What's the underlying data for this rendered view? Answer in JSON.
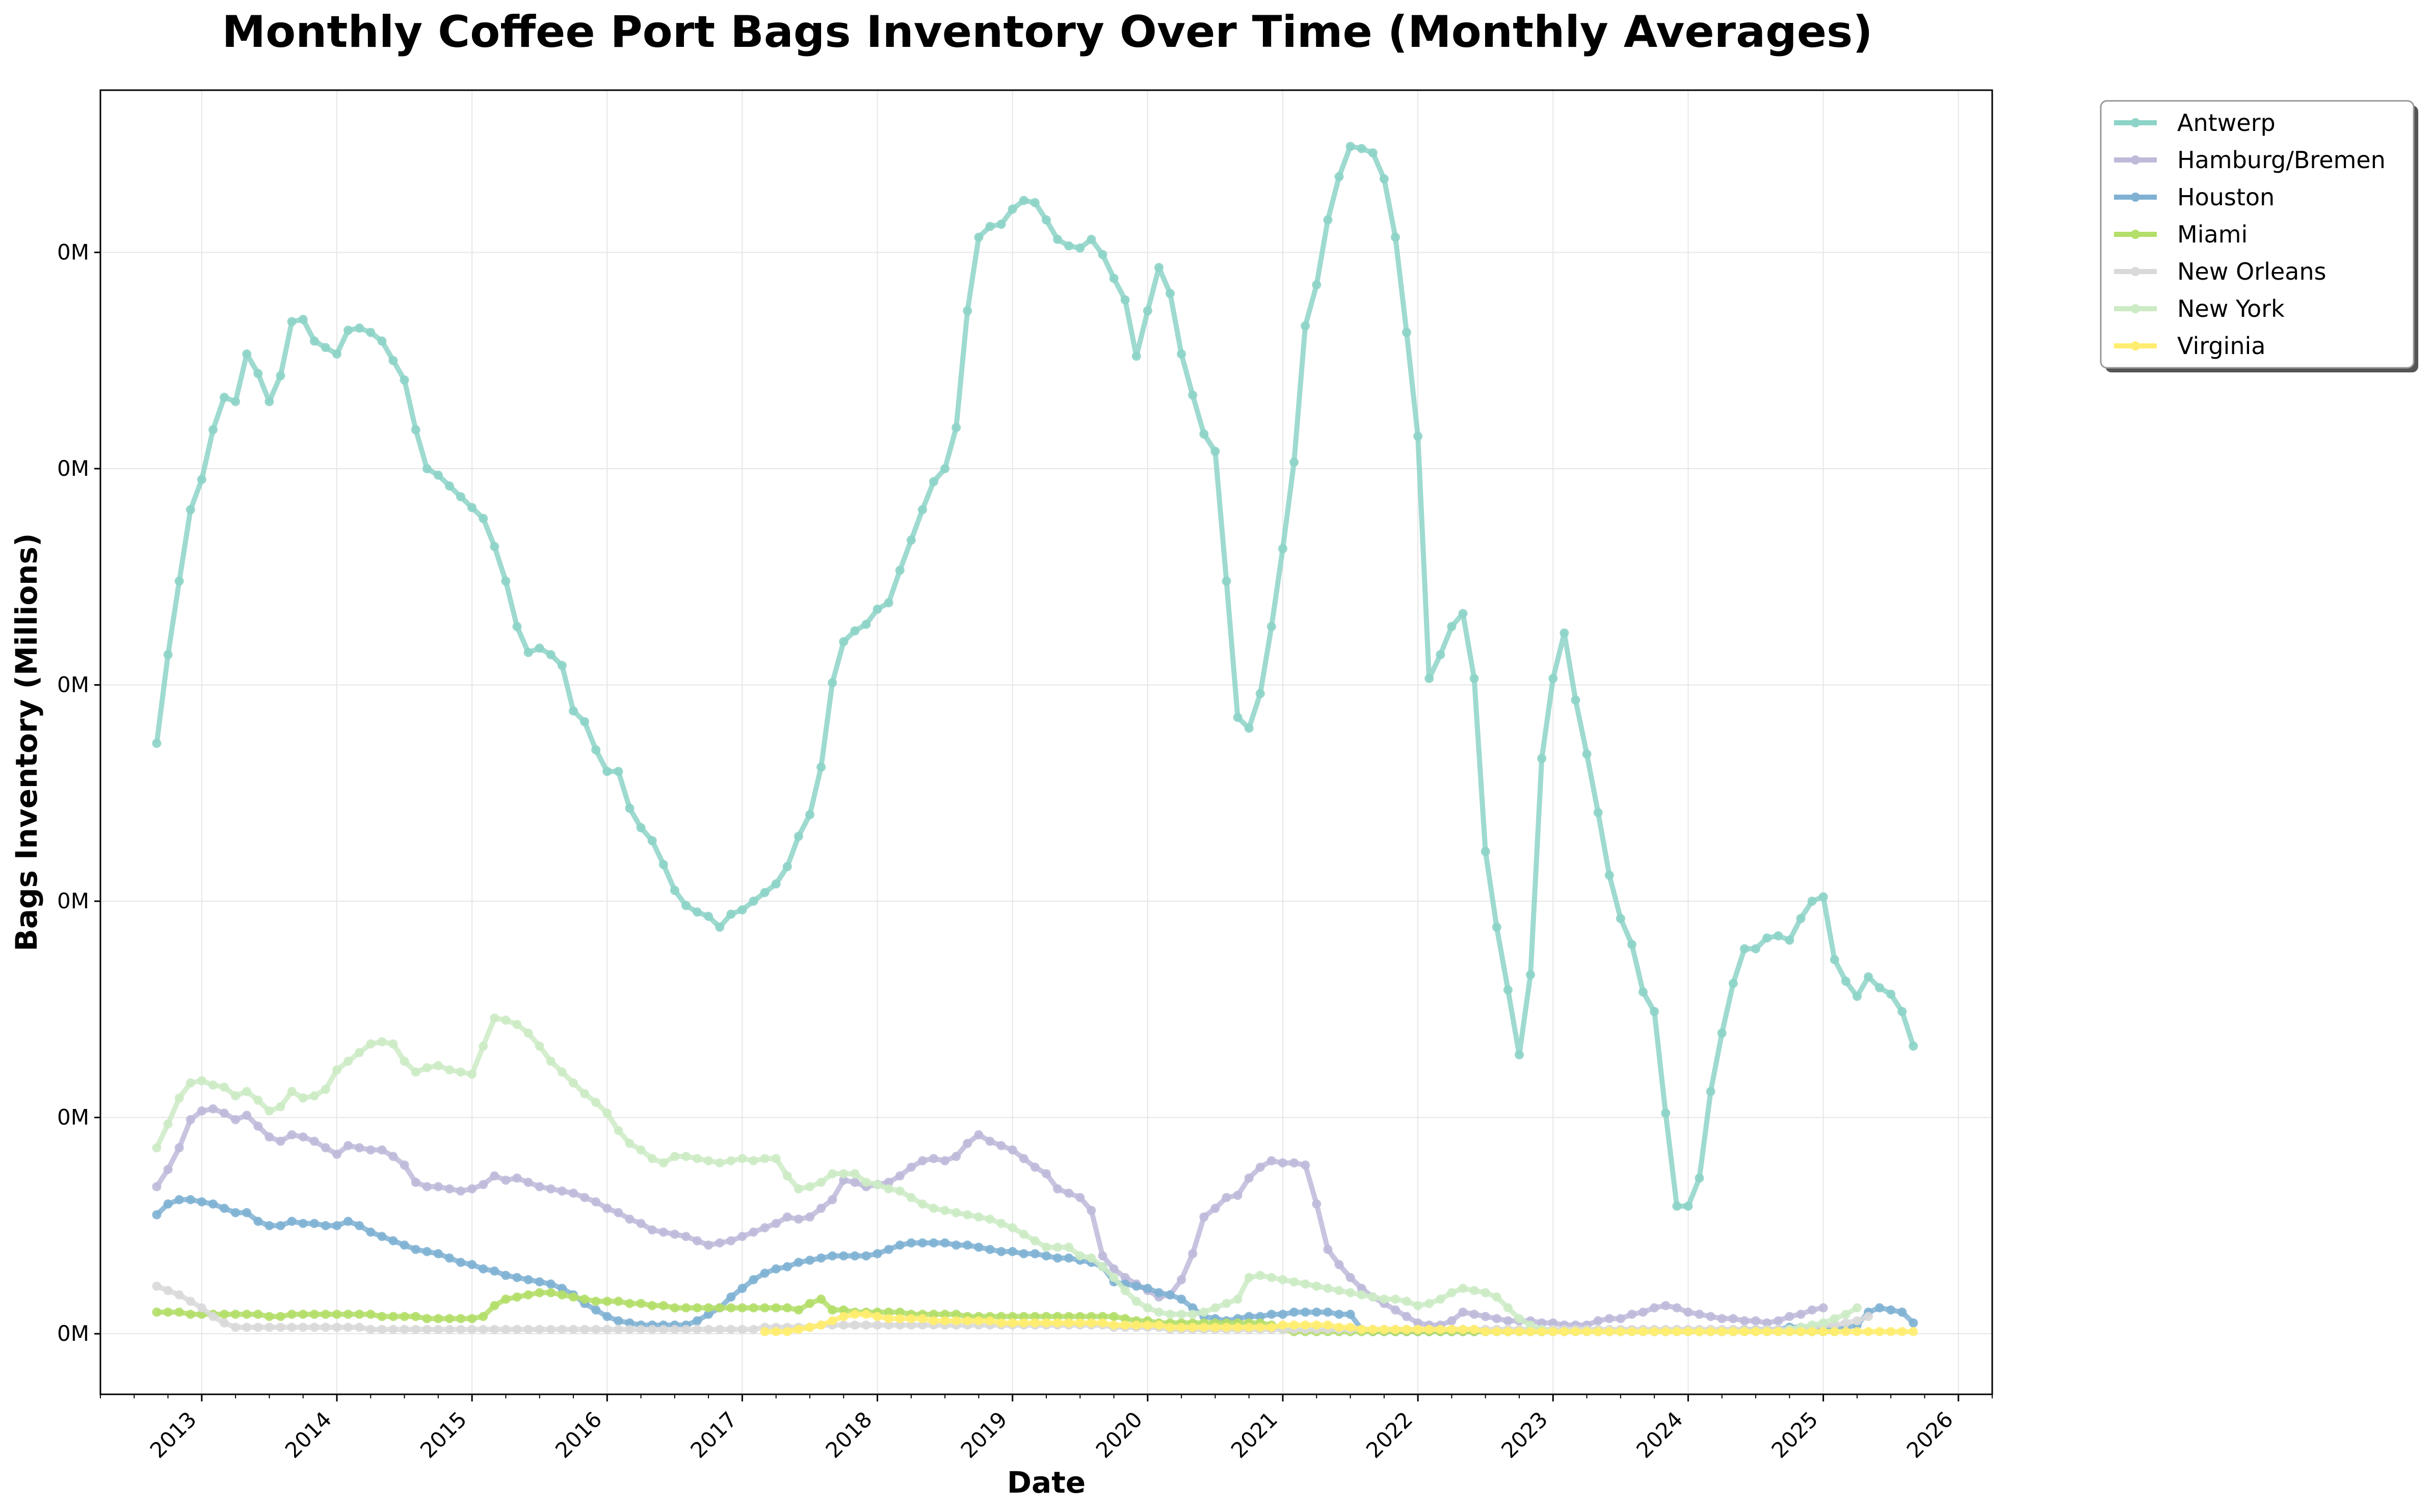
{
  "chart_data": {
    "type": "line",
    "title": "Monthly Coffee Port Bags Inventory Over Time (Monthly Averages)",
    "xlabel": "Date",
    "ylabel": "Bags Inventory (Millions)",
    "x_ticks": [
      "2013",
      "2014",
      "2015",
      "2016",
      "2017",
      "2018",
      "2019",
      "2020",
      "2021",
      "2022",
      "2023",
      "2024",
      "2025",
      "2026"
    ],
    "y_tick_label": "0M",
    "y_ticks": [
      0,
      0.1,
      0.2,
      0.3,
      0.4,
      0.5
    ],
    "ylim": [
      -0.028,
      0.575
    ],
    "xlim": [
      "2012-04",
      "2026-04"
    ],
    "grid": true,
    "legend_position": "outside-top-right",
    "series": [
      {
        "name": "Antwerp",
        "color": "#8dd3c7",
        "start": "2012-09",
        "values": [
          0.273,
          0.314,
          0.348,
          0.381,
          0.395,
          0.418,
          0.433,
          0.431,
          0.453,
          0.444,
          0.431,
          0.443,
          0.468,
          0.469,
          0.459,
          0.456,
          0.453,
          0.464,
          0.465,
          0.463,
          0.459,
          0.45,
          0.441,
          0.418,
          0.4,
          0.397,
          0.392,
          0.387,
          0.382,
          0.377,
          0.364,
          0.348,
          0.327,
          0.315,
          0.317,
          0.314,
          0.309,
          0.288,
          0.283,
          0.27,
          0.26,
          0.26,
          0.243,
          0.234,
          0.228,
          0.217,
          0.205,
          0.198,
          0.195,
          0.193,
          0.188,
          0.194,
          0.196,
          0.2,
          0.204,
          0.208,
          0.216,
          0.23,
          0.24,
          0.262,
          0.301,
          0.32,
          0.325,
          0.328,
          0.335,
          0.338,
          0.353,
          0.367,
          0.381,
          0.394,
          0.4,
          0.419,
          0.473,
          0.507,
          0.512,
          0.513,
          0.52,
          0.524,
          0.523,
          0.515,
          0.506,
          0.503,
          0.502,
          0.506,
          0.499,
          0.488,
          0.478,
          0.452,
          0.473,
          0.493,
          0.481,
          0.453,
          0.434,
          0.416,
          0.408,
          0.348,
          0.285,
          0.28,
          0.296,
          0.327,
          0.363,
          0.403,
          0.466,
          0.485,
          0.515,
          0.535,
          0.549,
          0.548,
          0.546,
          0.534,
          0.507,
          0.463,
          0.415,
          0.303,
          0.314,
          0.327,
          0.333,
          0.303,
          0.223,
          0.188,
          0.159,
          0.129,
          0.166,
          0.266,
          0.303,
          0.324,
          0.293,
          0.268,
          0.241,
          0.212,
          0.192,
          0.18,
          0.158,
          0.149,
          0.102,
          0.059,
          0.059,
          0.072,
          0.112,
          0.139,
          0.162,
          0.178,
          0.178,
          0.183,
          0.184,
          0.182,
          0.192,
          0.2,
          0.202,
          0.173,
          0.163,
          0.156,
          0.165,
          0.16,
          0.157,
          0.149,
          0.133
        ]
      },
      {
        "name": "Hamburg/Bremen",
        "color": "#bebada",
        "start": "2012-09",
        "values": [
          0.068,
          0.076,
          0.086,
          0.099,
          0.103,
          0.104,
          0.102,
          0.099,
          0.101,
          0.096,
          0.091,
          0.089,
          0.092,
          0.091,
          0.089,
          0.086,
          0.083,
          0.087,
          0.086,
          0.085,
          0.085,
          0.082,
          0.078,
          0.07,
          0.068,
          0.068,
          0.067,
          0.066,
          0.067,
          0.069,
          0.073,
          0.071,
          0.072,
          0.07,
          0.068,
          0.067,
          0.066,
          0.065,
          0.063,
          0.061,
          0.058,
          0.056,
          0.053,
          0.051,
          0.048,
          0.047,
          0.046,
          0.045,
          0.043,
          0.041,
          0.042,
          0.043,
          0.045,
          0.047,
          0.049,
          0.051,
          0.054,
          0.053,
          0.054,
          0.058,
          0.062,
          0.071,
          0.07,
          0.068,
          0.069,
          0.07,
          0.073,
          0.077,
          0.08,
          0.081,
          0.08,
          0.082,
          0.088,
          0.092,
          0.089,
          0.087,
          0.085,
          0.081,
          0.077,
          0.074,
          0.067,
          0.065,
          0.063,
          0.057,
          0.036,
          0.03,
          0.026,
          0.023,
          0.02,
          0.017,
          0.018,
          0.025,
          0.037,
          0.054,
          0.058,
          0.063,
          0.064,
          0.072,
          0.077,
          0.08,
          0.079,
          0.079,
          0.078,
          0.06,
          0.039,
          0.032,
          0.026,
          0.021,
          0.017,
          0.014,
          0.011,
          0.008,
          0.005,
          0.004,
          0.004,
          0.006,
          0.01,
          0.009,
          0.008,
          0.007,
          0.006,
          0.006,
          0.006,
          0.005,
          0.005,
          0.004,
          0.004,
          0.004,
          0.006,
          0.007,
          0.007,
          0.009,
          0.01,
          0.012,
          0.013,
          0.012,
          0.01,
          0.009,
          0.008,
          0.007,
          0.007,
          0.006,
          0.006,
          0.005,
          0.006,
          0.008,
          0.009,
          0.011,
          0.012
        ]
      },
      {
        "name": "Houston",
        "color": "#80b1d3",
        "start": "2012-09",
        "values": [
          0.055,
          0.06,
          0.062,
          0.062,
          0.061,
          0.06,
          0.058,
          0.056,
          0.056,
          0.052,
          0.05,
          0.05,
          0.052,
          0.051,
          0.051,
          0.05,
          0.05,
          0.052,
          0.05,
          0.047,
          0.045,
          0.043,
          0.041,
          0.039,
          0.038,
          0.037,
          0.035,
          0.033,
          0.032,
          0.03,
          0.029,
          0.027,
          0.026,
          0.025,
          0.024,
          0.023,
          0.021,
          0.018,
          0.014,
          0.011,
          0.008,
          0.006,
          0.005,
          0.004,
          0.004,
          0.004,
          0.004,
          0.004,
          0.006,
          0.009,
          0.012,
          0.017,
          0.021,
          0.025,
          0.028,
          0.03,
          0.031,
          0.033,
          0.034,
          0.035,
          0.036,
          0.036,
          0.036,
          0.036,
          0.037,
          0.039,
          0.041,
          0.042,
          0.042,
          0.042,
          0.042,
          0.041,
          0.041,
          0.04,
          0.039,
          0.038,
          0.038,
          0.037,
          0.037,
          0.036,
          0.035,
          0.035,
          0.034,
          0.033,
          0.031,
          0.024,
          0.023,
          0.022,
          0.021,
          0.019,
          0.018,
          0.016,
          0.012,
          0.008,
          0.007,
          0.006,
          0.007,
          0.008,
          0.008,
          0.009,
          0.009,
          0.01,
          0.01,
          0.01,
          0.01,
          0.009,
          0.009,
          0.002,
          0.001,
          0.001,
          0.001,
          0.001,
          0.001,
          0.001,
          0.001,
          0.001,
          0.001,
          0.001,
          0.001,
          0.001,
          0.001,
          0.001,
          0.001,
          0.001,
          0.001,
          0.001,
          0.001,
          0.001,
          0.001,
          0.001,
          0.001,
          0.001,
          0.001,
          0.001,
          0.001,
          0.001,
          0.001,
          0.001,
          0.001,
          0.001,
          0.001,
          0.002,
          0.002,
          0.002,
          0.002,
          0.003,
          0.003,
          0.003,
          0.003,
          0.003,
          0.003,
          0.004,
          0.01,
          0.012,
          0.011,
          0.01,
          0.005
        ]
      },
      {
        "name": "Miami",
        "color": "#b3de69",
        "start": "2012-09",
        "values": [
          0.01,
          0.01,
          0.01,
          0.009,
          0.009,
          0.009,
          0.009,
          0.009,
          0.009,
          0.009,
          0.008,
          0.008,
          0.009,
          0.009,
          0.009,
          0.009,
          0.009,
          0.009,
          0.009,
          0.009,
          0.008,
          0.008,
          0.008,
          0.008,
          0.007,
          0.007,
          0.007,
          0.007,
          0.007,
          0.008,
          0.013,
          0.016,
          0.017,
          0.018,
          0.019,
          0.019,
          0.018,
          0.017,
          0.016,
          0.015,
          0.015,
          0.015,
          0.014,
          0.014,
          0.013,
          0.013,
          0.012,
          0.012,
          0.012,
          0.012,
          0.012,
          0.012,
          0.012,
          0.012,
          0.012,
          0.012,
          0.012,
          0.011,
          0.014,
          0.016,
          0.011,
          0.011,
          0.01,
          0.01,
          0.01,
          0.01,
          0.01,
          0.009,
          0.009,
          0.009,
          0.009,
          0.009,
          0.008,
          0.008,
          0.008,
          0.008,
          0.008,
          0.008,
          0.008,
          0.008,
          0.008,
          0.008,
          0.008,
          0.008,
          0.008,
          0.008,
          0.007,
          0.006,
          0.006,
          0.005,
          0.005,
          0.005,
          0.005,
          0.005,
          0.005,
          0.005,
          0.005,
          0.005,
          0.005,
          0.004,
          0.002,
          0.001,
          0.001,
          0.001,
          0.001,
          0.001,
          0.001,
          0.001,
          0.001,
          0.001,
          0.001,
          0.001,
          0.001,
          0.001,
          0.001,
          0.001,
          0.001,
          0.001,
          0.001,
          0.001,
          0.001,
          0.001,
          0.001,
          0.001,
          0.001,
          0.001,
          0.001,
          0.001,
          0.001,
          0.001,
          0.001,
          0.001,
          0.001,
          0.001,
          0.001,
          0.001,
          0.001,
          0.001,
          0.001,
          0.001,
          0.001,
          0.001,
          0.001,
          0.001,
          0.001,
          0.001,
          0.001,
          0.001,
          0.001,
          0.001
        ]
      },
      {
        "name": "New Orleans",
        "color": "#d9d9d9",
        "start": "2012-09",
        "values": [
          0.022,
          0.02,
          0.018,
          0.015,
          0.012,
          0.008,
          0.005,
          0.003,
          0.003,
          0.003,
          0.003,
          0.003,
          0.003,
          0.003,
          0.003,
          0.003,
          0.003,
          0.003,
          0.003,
          0.002,
          0.002,
          0.002,
          0.002,
          0.002,
          0.002,
          0.002,
          0.002,
          0.002,
          0.002,
          0.002,
          0.002,
          0.002,
          0.002,
          0.002,
          0.002,
          0.002,
          0.002,
          0.002,
          0.002,
          0.002,
          0.002,
          0.002,
          0.002,
          0.002,
          0.002,
          0.002,
          0.002,
          0.002,
          0.002,
          0.002,
          0.002,
          0.002,
          0.002,
          0.002,
          0.003,
          0.003,
          0.003,
          0.003,
          0.003,
          0.004,
          0.004,
          0.004,
          0.004,
          0.004,
          0.004,
          0.004,
          0.004,
          0.004,
          0.004,
          0.004,
          0.004,
          0.004,
          0.004,
          0.004,
          0.004,
          0.004,
          0.004,
          0.004,
          0.004,
          0.004,
          0.004,
          0.004,
          0.004,
          0.004,
          0.004,
          0.003,
          0.003,
          0.003,
          0.003,
          0.003,
          0.002,
          0.002,
          0.002,
          0.002,
          0.002,
          0.002,
          0.002,
          0.002,
          0.002,
          0.002,
          0.002,
          0.002,
          0.002,
          0.002,
          0.002,
          0.002,
          0.002,
          0.002,
          0.002,
          0.002,
          0.002,
          0.002,
          0.002,
          0.002,
          0.002,
          0.002,
          0.002,
          0.002,
          0.002,
          0.002,
          0.002,
          0.002,
          0.002,
          0.002,
          0.002,
          0.002,
          0.002,
          0.002,
          0.002,
          0.002,
          0.002,
          0.002,
          0.002,
          0.002,
          0.002,
          0.002,
          0.002,
          0.002,
          0.002,
          0.002,
          0.002,
          0.002,
          0.002,
          0.002,
          0.002,
          0.002,
          0.003,
          0.003,
          0.004,
          0.004,
          0.005,
          0.006,
          0.008
        ]
      },
      {
        "name": "New York",
        "color": "#ccebc5",
        "start": "2012-09",
        "values": [
          0.086,
          0.097,
          0.109,
          0.116,
          0.117,
          0.115,
          0.114,
          0.11,
          0.112,
          0.108,
          0.103,
          0.105,
          0.112,
          0.109,
          0.11,
          0.113,
          0.122,
          0.126,
          0.13,
          0.134,
          0.135,
          0.134,
          0.126,
          0.121,
          0.123,
          0.124,
          0.122,
          0.121,
          0.12,
          0.133,
          0.146,
          0.145,
          0.143,
          0.139,
          0.133,
          0.126,
          0.121,
          0.116,
          0.111,
          0.107,
          0.102,
          0.094,
          0.088,
          0.085,
          0.081,
          0.079,
          0.082,
          0.082,
          0.081,
          0.08,
          0.079,
          0.08,
          0.081,
          0.08,
          0.081,
          0.081,
          0.073,
          0.067,
          0.068,
          0.07,
          0.074,
          0.074,
          0.074,
          0.07,
          0.069,
          0.067,
          0.066,
          0.063,
          0.06,
          0.058,
          0.057,
          0.056,
          0.055,
          0.054,
          0.053,
          0.051,
          0.049,
          0.046,
          0.043,
          0.04,
          0.04,
          0.04,
          0.036,
          0.035,
          0.031,
          0.026,
          0.02,
          0.015,
          0.012,
          0.01,
          0.009,
          0.009,
          0.009,
          0.01,
          0.012,
          0.014,
          0.016,
          0.026,
          0.027,
          0.026,
          0.025,
          0.024,
          0.023,
          0.022,
          0.021,
          0.02,
          0.019,
          0.018,
          0.017,
          0.016,
          0.016,
          0.015,
          0.013,
          0.014,
          0.016,
          0.019,
          0.021,
          0.02,
          0.019,
          0.017,
          0.012,
          0.007,
          0.004,
          0.002,
          0.001,
          0.001,
          0.001,
          0.001,
          0.001,
          0.001,
          0.001,
          0.001,
          0.001,
          0.001,
          0.001,
          0.001,
          0.001,
          0.001,
          0.001,
          0.001,
          0.001,
          0.001,
          0.001,
          0.001,
          0.001,
          0.002,
          0.003,
          0.004,
          0.005,
          0.007,
          0.009,
          0.012
        ]
      },
      {
        "name": "Virginia",
        "color": "#ffed6f",
        "start": "2017-03",
        "values": [
          0.001,
          0.001,
          0.001,
          0.002,
          0.003,
          0.004,
          0.006,
          0.008,
          0.009,
          0.009,
          0.008,
          0.007,
          0.007,
          0.007,
          0.007,
          0.006,
          0.006,
          0.006,
          0.006,
          0.006,
          0.006,
          0.005,
          0.005,
          0.005,
          0.005,
          0.005,
          0.005,
          0.005,
          0.005,
          0.005,
          0.005,
          0.004,
          0.004,
          0.004,
          0.004,
          0.004,
          0.003,
          0.003,
          0.003,
          0.003,
          0.003,
          0.003,
          0.003,
          0.003,
          0.003,
          0.003,
          0.004,
          0.004,
          0.004,
          0.004,
          0.004,
          0.003,
          0.003,
          0.002,
          0.002,
          0.002,
          0.002,
          0.002,
          0.002,
          0.002,
          0.002,
          0.002,
          0.002,
          0.002,
          0.001,
          0.001,
          0.001,
          0.001,
          0.001,
          0.001,
          0.001,
          0.001,
          0.001,
          0.001,
          0.001,
          0.001,
          0.001,
          0.001,
          0.001,
          0.001,
          0.001,
          0.001,
          0.001,
          0.001,
          0.001,
          0.001,
          0.001,
          0.001,
          0.001,
          0.001,
          0.001,
          0.001,
          0.001,
          0.001,
          0.001,
          0.001,
          0.001,
          0.001,
          0.001,
          0.001,
          0.001,
          0.001,
          0.001
        ]
      }
    ]
  }
}
